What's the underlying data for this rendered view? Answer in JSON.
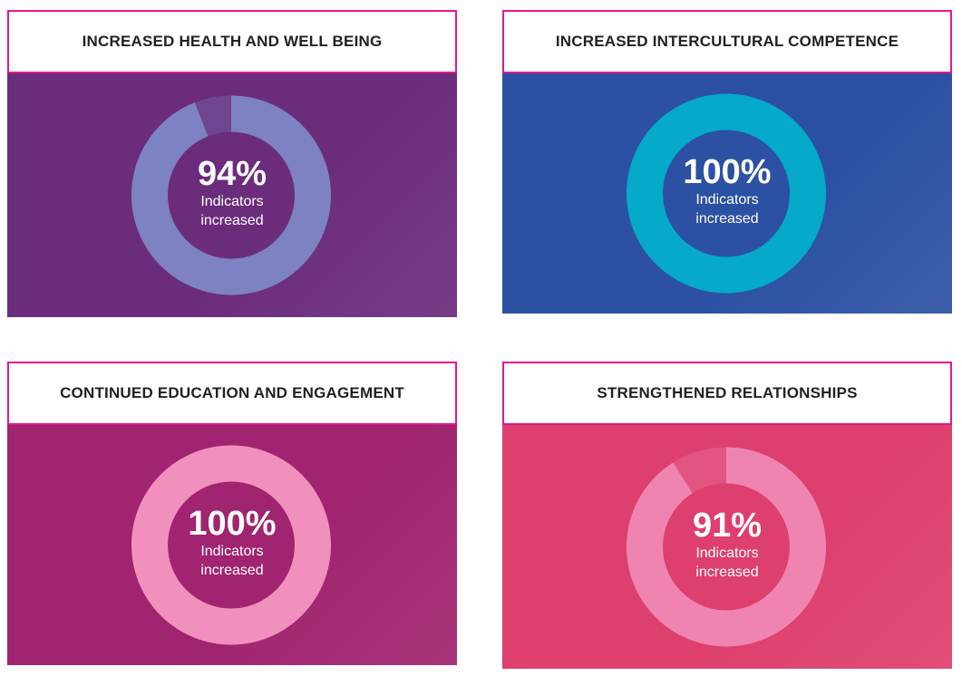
{
  "chart_data": [
    {
      "type": "pie",
      "variant": "donut",
      "title": "INCREASED HEALTH AND WELL BEING",
      "value": 94,
      "value_label": "94%",
      "caption_line1": "Indicators",
      "caption_line2": "increased",
      "colors": {
        "background": "#6b2c7c",
        "ring": "#7c82c2"
      }
    },
    {
      "type": "pie",
      "variant": "donut",
      "title": "INCREASED INTERCULTURAL COMPETENCE",
      "value": 100,
      "value_label": "100%",
      "caption_line1": "Indicators",
      "caption_line2": "increased",
      "colors": {
        "background": "#2c50a2",
        "ring": "#05a9c9"
      }
    },
    {
      "type": "pie",
      "variant": "donut",
      "title": "CONTINUED EDUCATION AND ENGAGEMENT",
      "value": 100,
      "value_label": "100%",
      "caption_line1": "Indicators",
      "caption_line2": "increased",
      "colors": {
        "background": "#a0246f",
        "ring": "#f290bd"
      }
    },
    {
      "type": "pie",
      "variant": "donut",
      "title": "STRENGTHENED RELATIONSHIPS",
      "value": 91,
      "value_label": "91%",
      "caption_line1": "Indicators",
      "caption_line2": "increased",
      "colors": {
        "background": "#dd3f6e",
        "ring": "#f084b0"
      }
    }
  ]
}
